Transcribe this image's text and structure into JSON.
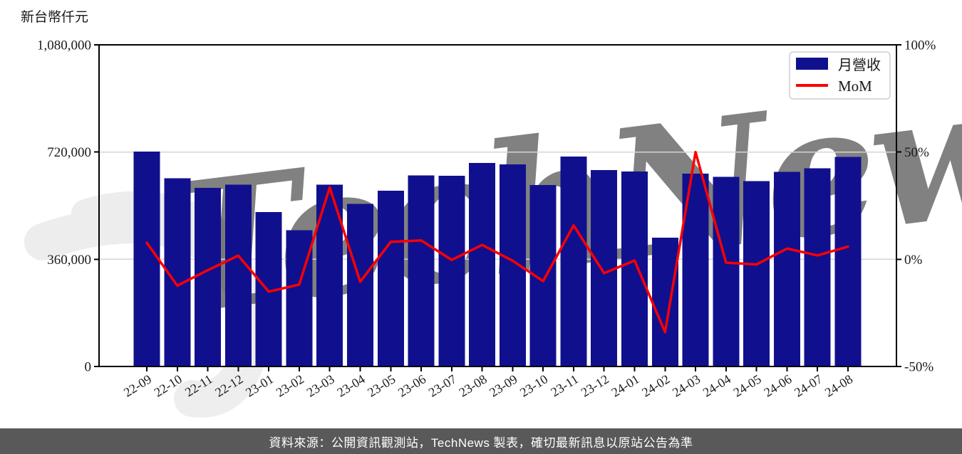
{
  "page": {
    "background": "#ffffff",
    "footer": {
      "text": "資料來源：公開資訊觀測站，TechNews 製表，確切最新訊息以原站公告為準",
      "background": "#595959",
      "text_color": "#ffffff"
    },
    "watermark": {
      "text": "TechNews",
      "pink": "#f6d2d4",
      "gray": "#ececec"
    }
  },
  "chart_data": {
    "type": "bar",
    "title": "",
    "categories": [
      "22-09",
      "22-10",
      "22-11",
      "22-12",
      "23-01",
      "23-02",
      "23-03",
      "23-04",
      "23-05",
      "23-06",
      "23-07",
      "23-08",
      "23-09",
      "23-10",
      "23-11",
      "23-12",
      "24-01",
      "24-02",
      "24-03",
      "24-04",
      "24-05",
      "24-06",
      "24-07",
      "24-08"
    ],
    "series": [
      {
        "name": "月營收",
        "type": "bar",
        "axis": "left",
        "color": "#10108e",
        "values": [
          721000,
          632000,
          600000,
          610000,
          518000,
          457000,
          610000,
          546000,
          590000,
          642000,
          640000,
          683000,
          678000,
          609000,
          705000,
          659000,
          655000,
          432000,
          648000,
          637000,
          622000,
          653000,
          665000,
          704000
        ]
      },
      {
        "name": "MoM",
        "type": "line",
        "axis": "right",
        "color": "#fa0000",
        "values": [
          7.7,
          -12.3,
          -5.1,
          1.7,
          -15.1,
          -11.8,
          33.5,
          -10.5,
          8.1,
          8.8,
          -0.3,
          6.7,
          -0.7,
          -10.2,
          15.8,
          -6.5,
          -0.6,
          -34.0,
          50.0,
          -1.6,
          -2.4,
          5.0,
          1.8,
          5.9
        ]
      }
    ],
    "left_axis": {
      "title": "新台幣仟元",
      "min": 0,
      "max": 1080000,
      "ticks": [
        {
          "label": "0",
          "value": 0
        },
        {
          "label": "360,000",
          "value": 360000
        },
        {
          "label": "720,000",
          "value": 720000
        },
        {
          "label": "1,080,000",
          "value": 1080000
        }
      ]
    },
    "right_axis": {
      "min": -50,
      "max": 100,
      "ticks": [
        {
          "label": "-50%",
          "value": -50
        },
        {
          "label": "0%",
          "value": 0
        },
        {
          "label": "50%",
          "value": 50
        },
        {
          "label": "100%",
          "value": 100
        }
      ]
    },
    "grid_values": [
      360000,
      720000
    ],
    "grid_color": "#d4d4d4",
    "axis_color": "#000000",
    "legend": {
      "position": "top-right",
      "border_color": "#cfcfcf",
      "background": "#ffffff"
    },
    "xtick_rotation_deg": -32
  }
}
